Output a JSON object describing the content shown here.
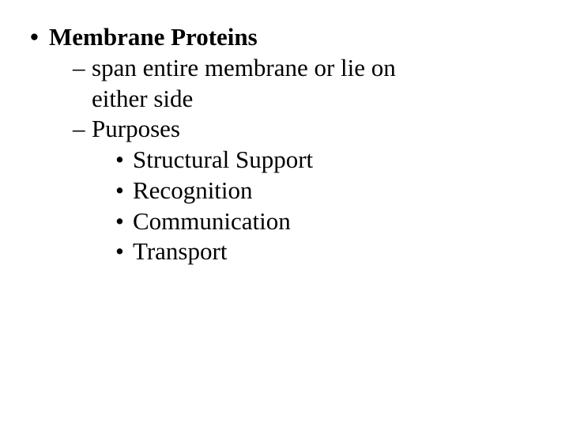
{
  "text_color": "#000000",
  "background_color": "#ffffff",
  "font_family": "Times New Roman",
  "font_size_pt": 24,
  "outline": {
    "l1": {
      "bullet": "•",
      "label": "Membrane Proteins"
    },
    "l2a": {
      "dash": "–",
      "text_line1": "span entire membrane or lie on",
      "text_line2": "either side"
    },
    "l2b": {
      "dash": "–",
      "text": "Purposes"
    },
    "l3": {
      "bullet": "•",
      "items": [
        "Structural Support",
        "Recognition",
        "Communication",
        "Transport"
      ]
    }
  }
}
